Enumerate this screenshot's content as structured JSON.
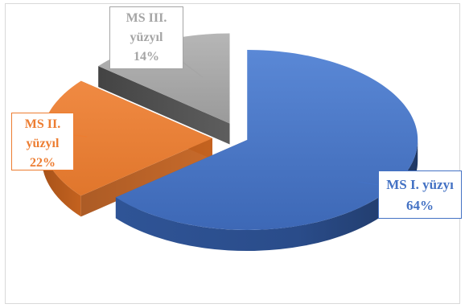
{
  "chart_data": {
    "type": "pie",
    "style": "3d-exploded",
    "categories": [
      "MS I. yüzyı",
      "MS II. yüzyıl",
      "MS III. yüzyıl"
    ],
    "values": [
      64,
      22,
      14
    ],
    "unit": "%",
    "legend": "none",
    "labels": [
      {
        "category": "MS I. yüzyı",
        "value_text": "64%"
      },
      {
        "category": "MS II. yüzyıl",
        "value_text": "22%"
      },
      {
        "category": "MS III. yüzyıl",
        "value_text": "14%"
      }
    ],
    "colors": [
      "#4472c4",
      "#ed7d31",
      "#a5a5a5"
    ]
  }
}
